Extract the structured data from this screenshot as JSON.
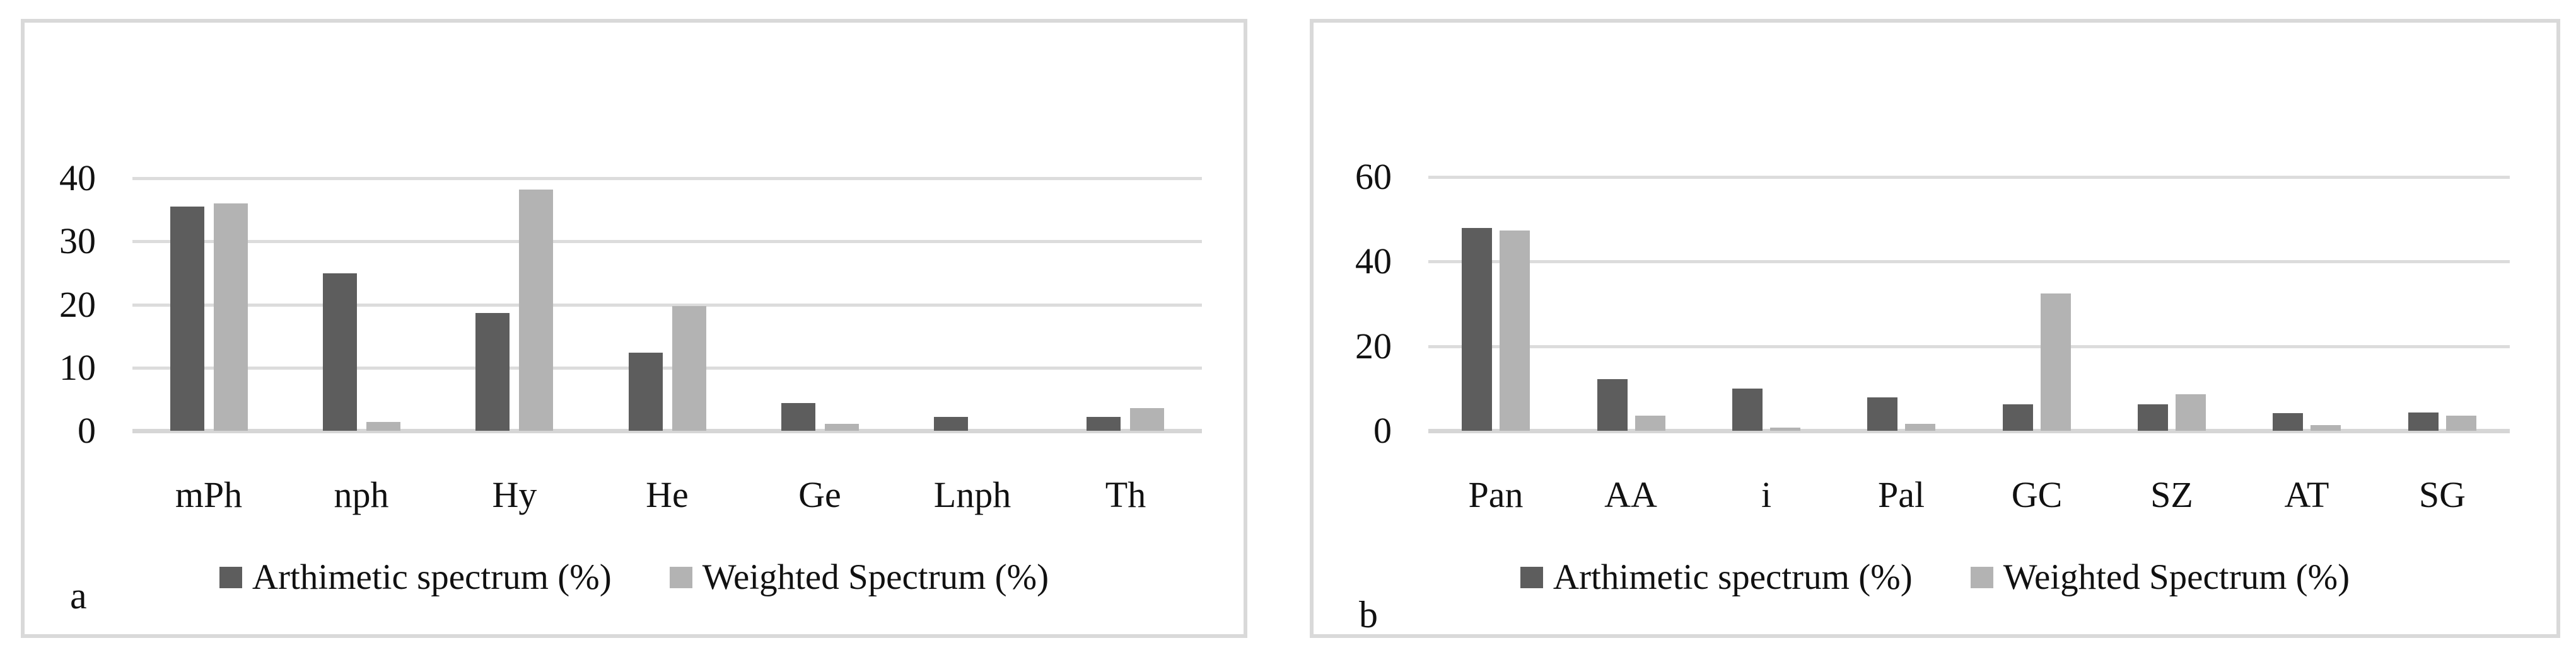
{
  "page": {
    "background": "#ffffff"
  },
  "colors": {
    "dark_series": "#5d5d5d",
    "light_series": "#b3b3b3",
    "gridline": "#dcdcdc",
    "axis_line": "#d6d6d6",
    "panel_border": "#d9d9d9",
    "text": "#111111"
  },
  "legend": {
    "arithmetic_label": "Arthimetic spectrum (%)",
    "weighted_label": "Weighted Spectrum (%)"
  },
  "chart_data": [
    {
      "id": "a",
      "type": "bar",
      "panel_label": "a",
      "categories": [
        "mPh",
        "nph",
        "Hy",
        "He",
        "Ge",
        "Lnph",
        "Th"
      ],
      "series": [
        {
          "name": "Arthimetic spectrum (%)",
          "color_key": "dark_series",
          "values": [
            35.5,
            24.9,
            18.7,
            12.4,
            4.4,
            2.2,
            2.2
          ]
        },
        {
          "name": "Weighted Spectrum (%)",
          "color_key": "light_series",
          "values": [
            36.0,
            1.4,
            38.2,
            19.8,
            1.1,
            0,
            3.6
          ]
        }
      ],
      "y_ticks": [
        0,
        10,
        20,
        30,
        40
      ],
      "ylim": [
        0,
        40
      ],
      "grid": true,
      "legend_position": "bottom"
    },
    {
      "id": "b",
      "type": "bar",
      "panel_label": "b",
      "categories": [
        "Pan",
        "AA",
        "i",
        "Pal",
        "GC",
        "SZ",
        "AT",
        "SG"
      ],
      "series": [
        {
          "name": "Arthimetic spectrum (%)",
          "color_key": "dark_series",
          "values": [
            48.0,
            12.2,
            10.0,
            7.9,
            6.3,
            6.3,
            4.2,
            4.3
          ]
        },
        {
          "name": "Weighted Spectrum (%)",
          "color_key": "light_series",
          "values": [
            47.3,
            3.5,
            0.8,
            1.7,
            32.4,
            8.6,
            1.3,
            3.5
          ]
        }
      ],
      "y_ticks": [
        0,
        20,
        40,
        60
      ],
      "ylim": [
        0,
        60
      ],
      "grid": true,
      "legend_position": "bottom"
    }
  ]
}
